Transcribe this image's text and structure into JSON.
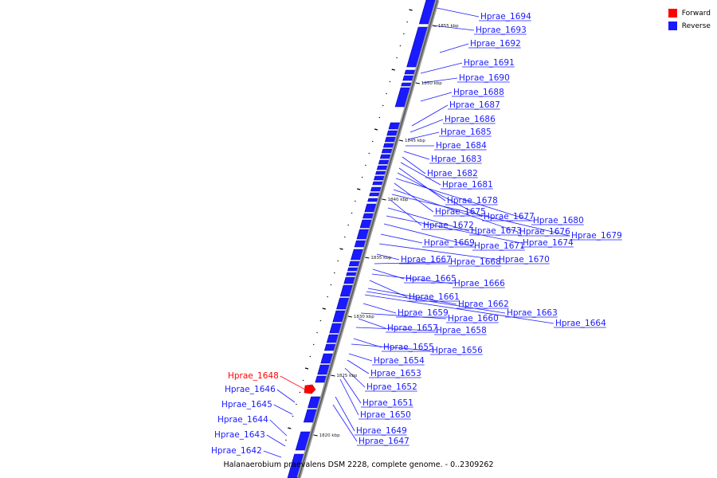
{
  "legend": {
    "forward_label": "Forward",
    "reverse_label": "Reverse",
    "forward_color": "#ff0000",
    "reverse_color": "#1a1aff"
  },
  "caption": "Halanaerobium praevalens DSM 2228, complete genome. - 0..2309262",
  "ticks": [
    "1855 kbp",
    "1850 kbp",
    "1845 kbp",
    "1840 kbp",
    "1835 kbp",
    "1830 kbp",
    "1825 kbp",
    "1820 kbp"
  ],
  "genes": [
    {
      "label": "Hprae_1694",
      "strand": "reverse"
    },
    {
      "label": "Hprae_1693",
      "strand": "reverse"
    },
    {
      "label": "Hprae_1692",
      "strand": "reverse"
    },
    {
      "label": "Hprae_1691",
      "strand": "reverse"
    },
    {
      "label": "Hprae_1690",
      "strand": "reverse"
    },
    {
      "label": "Hprae_1688",
      "strand": "reverse"
    },
    {
      "label": "Hprae_1687",
      "strand": "reverse"
    },
    {
      "label": "Hprae_1686",
      "strand": "reverse"
    },
    {
      "label": "Hprae_1685",
      "strand": "reverse"
    },
    {
      "label": "Hprae_1684",
      "strand": "reverse"
    },
    {
      "label": "Hprae_1683",
      "strand": "reverse"
    },
    {
      "label": "Hprae_1682",
      "strand": "reverse"
    },
    {
      "label": "Hprae_1681",
      "strand": "reverse"
    },
    {
      "label": "Hprae_1678",
      "strand": "reverse"
    },
    {
      "label": "Hprae_1677",
      "strand": "reverse"
    },
    {
      "label": "Hprae_1680",
      "strand": "reverse"
    },
    {
      "label": "Hprae_1675",
      "strand": "reverse"
    },
    {
      "label": "Hprae_1676",
      "strand": "reverse"
    },
    {
      "label": "Hprae_1679",
      "strand": "reverse"
    },
    {
      "label": "Hprae_1672",
      "strand": "reverse"
    },
    {
      "label": "Hprae_1673",
      "strand": "reverse"
    },
    {
      "label": "Hprae_1674",
      "strand": "reverse"
    },
    {
      "label": "Hprae_1671",
      "strand": "reverse"
    },
    {
      "label": "Hprae_1669",
      "strand": "reverse"
    },
    {
      "label": "Hprae_1670",
      "strand": "reverse"
    },
    {
      "label": "Hprae_1667",
      "strand": "reverse"
    },
    {
      "label": "Hprae_1668",
      "strand": "reverse"
    },
    {
      "label": "Hprae_1665",
      "strand": "reverse"
    },
    {
      "label": "Hprae_1666",
      "strand": "reverse"
    },
    {
      "label": "Hprae_1661",
      "strand": "reverse"
    },
    {
      "label": "Hprae_1662",
      "strand": "reverse"
    },
    {
      "label": "Hprae_1663",
      "strand": "reverse"
    },
    {
      "label": "Hprae_1664",
      "strand": "reverse"
    },
    {
      "label": "Hprae_1659",
      "strand": "reverse"
    },
    {
      "label": "Hprae_1660",
      "strand": "reverse"
    },
    {
      "label": "Hprae_1657",
      "strand": "reverse"
    },
    {
      "label": "Hprae_1658",
      "strand": "reverse"
    },
    {
      "label": "Hprae_1655",
      "strand": "reverse"
    },
    {
      "label": "Hprae_1656",
      "strand": "reverse"
    },
    {
      "label": "Hprae_1654",
      "strand": "reverse"
    },
    {
      "label": "Hprae_1653",
      "strand": "reverse"
    },
    {
      "label": "Hprae_1652",
      "strand": "reverse"
    },
    {
      "label": "Hprae_1651",
      "strand": "reverse"
    },
    {
      "label": "Hprae_1650",
      "strand": "reverse"
    },
    {
      "label": "Hprae_1649",
      "strand": "reverse"
    },
    {
      "label": "Hprae_1647",
      "strand": "reverse"
    },
    {
      "label": "Hprae_1648",
      "strand": "forward"
    },
    {
      "label": "Hprae_1646",
      "strand": "reverse"
    },
    {
      "label": "Hprae_1645",
      "strand": "reverse"
    },
    {
      "label": "Hprae_1644",
      "strand": "reverse"
    },
    {
      "label": "Hprae_1643",
      "strand": "reverse"
    },
    {
      "label": "Hprae_1642",
      "strand": "reverse"
    }
  ]
}
